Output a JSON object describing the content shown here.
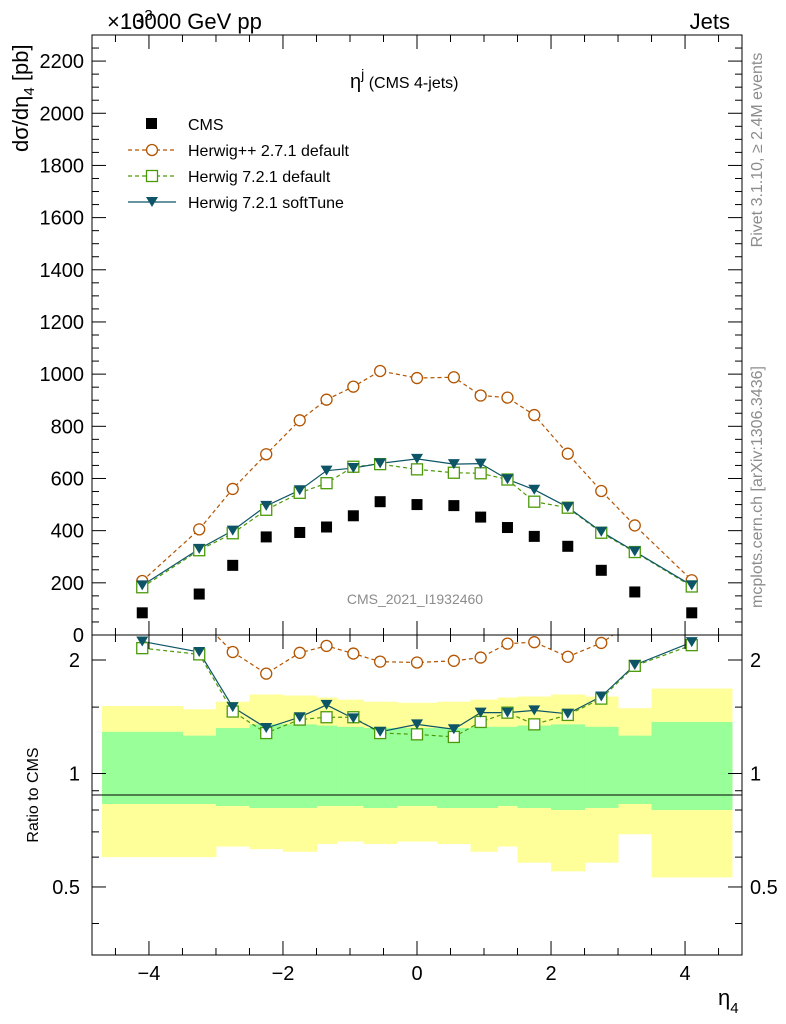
{
  "header": {
    "left": "13000 GeV pp",
    "right": "Jets",
    "exponent_glyph": "×10",
    "exponent_power": "3"
  },
  "side_labels": {
    "rivet": "Rivet 3.1.10, ≥ 2.4M events",
    "mcplots": "mcplots.cern.ch [arXiv:1306.3436]"
  },
  "watermark": "CMS_2021_I1932460",
  "chart_data": {
    "type": "line",
    "title": "η^j (CMS 4-jets)",
    "title_main": "η",
    "title_sup": "j",
    "title_rest": "(CMS 4-jets)",
    "xlabel": "η",
    "xlabel_sub": "4",
    "ylabel_main": "dσ/dη",
    "ylabel_sub": "4",
    "ylabel_unit": "[pb]",
    "ratio_ylabel": "Ratio to CMS",
    "xlim": [
      -4.85,
      4.85
    ],
    "ylim": [
      0,
      2300
    ],
    "ratio_ylim": [
      0.33,
      2.33
    ],
    "x_ticks": [
      -4,
      -2,
      0,
      2,
      4
    ],
    "x_tick_labels": [
      "−4",
      "−2",
      "0",
      "2",
      "4"
    ],
    "y_ticks": [
      0,
      200,
      400,
      600,
      800,
      1000,
      1200,
      1400,
      1600,
      1800,
      2000,
      2200
    ],
    "y_tick_labels": [
      "0",
      "200",
      "400",
      "600",
      "800",
      "1000",
      "1200",
      "1400",
      "1600",
      "1800",
      "2000",
      "2200"
    ],
    "ratio_ticks": [
      0.5,
      1,
      2
    ],
    "ratio_tick_labels": [
      "0.5",
      "1",
      "2"
    ],
    "legend_placement": "top-left",
    "x": [
      -4.1,
      -3.25,
      -2.75,
      -2.25,
      -1.75,
      -1.35,
      -0.95,
      -0.55,
      0.0,
      0.55,
      0.95,
      1.35,
      1.75,
      2.25,
      2.75,
      3.25,
      4.1
    ],
    "bin_edges": [
      -4.7,
      -3.5,
      -3.0,
      -2.5,
      -2.0,
      -1.5,
      -1.2,
      -0.8,
      -0.3,
      0.3,
      0.8,
      1.2,
      1.5,
      2.0,
      2.5,
      3.0,
      3.5,
      4.7
    ],
    "band_outer_upper": [
      1.51,
      1.48,
      1.55,
      1.62,
      1.61,
      1.59,
      1.57,
      1.55,
      1.54,
      1.55,
      1.57,
      1.59,
      1.6,
      1.62,
      1.6,
      1.49,
      1.68
    ],
    "band_outer_lower": [
      0.6,
      0.6,
      0.64,
      0.63,
      0.62,
      0.65,
      0.66,
      0.65,
      0.66,
      0.65,
      0.62,
      0.64,
      0.58,
      0.55,
      0.58,
      0.69,
      0.53
    ],
    "band_inner_upper": [
      1.29,
      1.26,
      1.32,
      1.35,
      1.35,
      1.34,
      1.33,
      1.32,
      1.32,
      1.32,
      1.33,
      1.33,
      1.34,
      1.35,
      1.33,
      1.26,
      1.37
    ],
    "band_inner_lower": [
      0.83,
      0.83,
      0.82,
      0.81,
      0.81,
      0.82,
      0.82,
      0.81,
      0.82,
      0.81,
      0.81,
      0.82,
      0.81,
      0.8,
      0.81,
      0.83,
      0.8
    ],
    "series": [
      {
        "name": "CMS",
        "color": "#000000",
        "marker": "filled-square",
        "values": [
          85,
          157,
          267,
          376,
          393,
          414,
          457,
          511,
          500,
          496,
          452,
          412,
          378,
          340,
          248,
          165,
          85
        ]
      },
      {
        "name": "Herwig++ 2.7.1 default",
        "color": "#b35400",
        "marker": "open-circle",
        "line": "dashed",
        "values": [
          207,
          405,
          560,
          693,
          823,
          902,
          952,
          1012,
          985,
          988,
          918,
          910,
          843,
          695,
          552,
          420,
          210
        ],
        "ratio": [
          2.44,
          2.58,
          2.1,
          1.84,
          2.09,
          2.18,
          2.08,
          1.98,
          1.97,
          1.99,
          2.03,
          2.21,
          2.23,
          2.04,
          2.22,
          2.55,
          2.47
        ]
      },
      {
        "name": "Herwig 7.2.1 default",
        "color": "#4c9a0a",
        "marker": "open-square",
        "line": "dashed",
        "values": [
          183,
          325,
          390,
          480,
          545,
          582,
          645,
          655,
          635,
          622,
          620,
          596,
          511,
          488,
          392,
          318,
          186
        ],
        "ratio": [
          2.15,
          2.07,
          1.46,
          1.28,
          1.39,
          1.41,
          1.41,
          1.28,
          1.27,
          1.25,
          1.37,
          1.45,
          1.35,
          1.43,
          1.58,
          1.93,
          2.19
        ]
      },
      {
        "name": "Herwig 7.2.1 softTune",
        "color": "#0d5566",
        "marker": "filled-triangle-down",
        "line": "solid",
        "values": [
          190,
          330,
          400,
          495,
          555,
          630,
          640,
          658,
          675,
          655,
          657,
          597,
          557,
          490,
          396,
          320,
          190
        ],
        "ratio": [
          2.24,
          2.1,
          1.5,
          1.32,
          1.41,
          1.52,
          1.4,
          1.29,
          1.35,
          1.31,
          1.45,
          1.45,
          1.47,
          1.44,
          1.6,
          1.94,
          2.23
        ]
      }
    ]
  }
}
